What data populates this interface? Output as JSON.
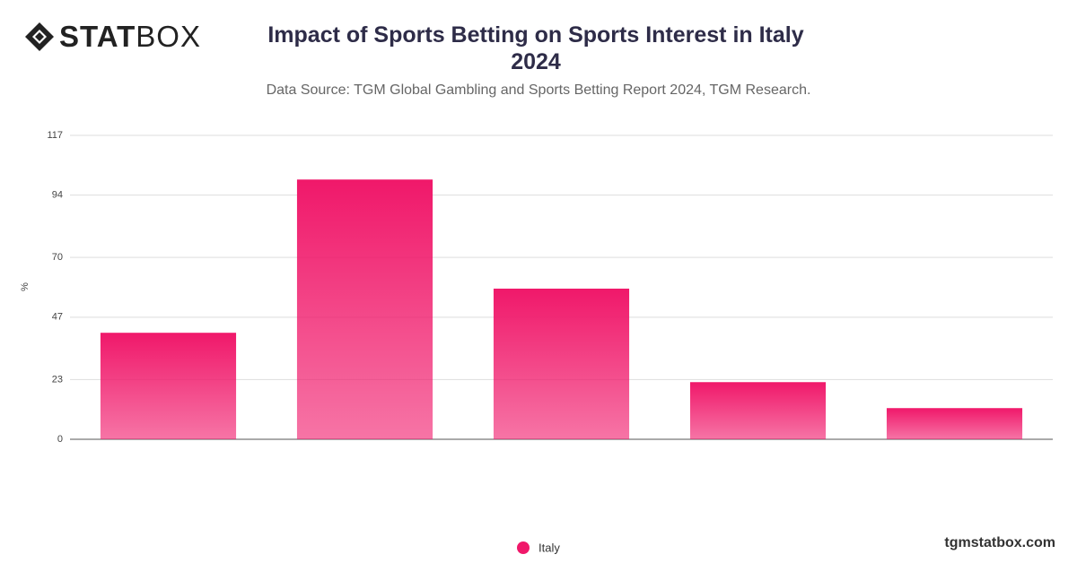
{
  "logo": [
    "STAT",
    "BOX"
  ],
  "footer": "tgmstatbox.com",
  "chart_data": {
    "type": "bar",
    "title": "Impact of Sports Betting on Sports Interest in Italy 2024",
    "subtitle": "Data Source: TGM Global Gambling and Sports Betting Report 2024, TGM Research.",
    "y_label": "%",
    "categories": [
      null,
      null,
      null,
      null,
      null
    ],
    "series": [
      {
        "name": "Italy",
        "color": "#f0186a",
        "values": [
          41,
          100,
          58,
          22,
          12
        ]
      }
    ],
    "ylim": [
      0,
      117
    ],
    "yticks": [
      0,
      23,
      47,
      70,
      94,
      117
    ],
    "grid": true,
    "legend": "bottom"
  }
}
